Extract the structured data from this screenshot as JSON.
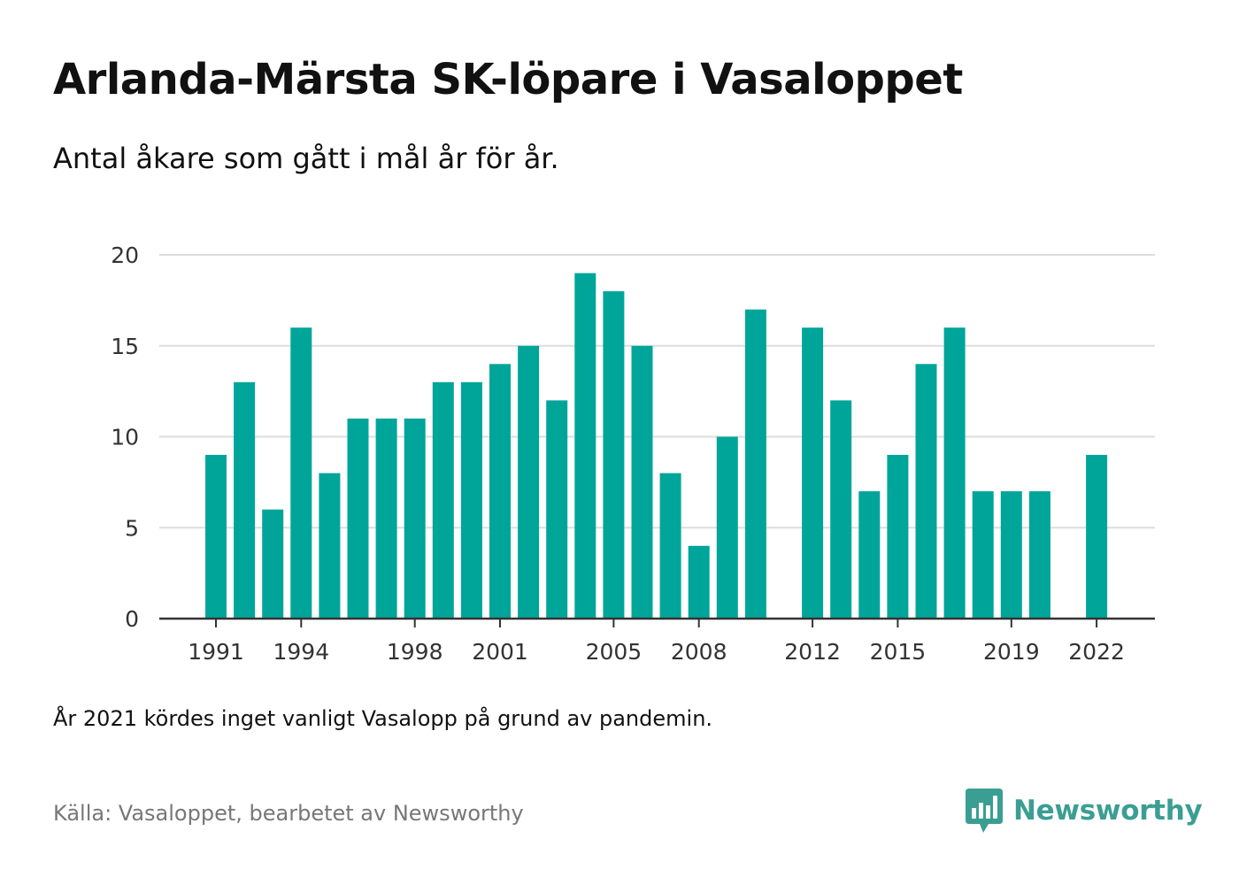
{
  "header": {
    "title": "Arlanda-Märsta SK-löpare i Vasaloppet",
    "subtitle": "Antal åkare som gått i mål år för år."
  },
  "footer": {
    "note": "År 2021 kördes inget vanligt Vasalopp på grund av pandemin.",
    "source": "Källa: Vasaloppet, bearbetet av Newsworthy",
    "brand": "Newsworthy"
  },
  "colors": {
    "bar": "#00a59a",
    "grid": "#dddddd",
    "axis": "#333333",
    "brand": "#3a9e93"
  },
  "chart_data": {
    "type": "bar",
    "title": "Arlanda-Märsta SK-löpare i Vasaloppet",
    "subtitle": "Antal åkare som gått i mål år för år.",
    "xlabel": "",
    "ylabel": "",
    "ylim": [
      0,
      20
    ],
    "yticks": [
      0,
      5,
      10,
      15,
      20
    ],
    "grid": true,
    "xrange": [
      1991,
      2022
    ],
    "xticks": [
      1991,
      1994,
      1998,
      2001,
      2005,
      2008,
      2012,
      2015,
      2019,
      2022
    ],
    "categories": [
      1991,
      1992,
      1993,
      1994,
      1995,
      1996,
      1997,
      1998,
      1999,
      2000,
      2001,
      2002,
      2003,
      2004,
      2005,
      2006,
      2007,
      2008,
      2009,
      2010,
      2011,
      2012,
      2013,
      2014,
      2015,
      2016,
      2017,
      2018,
      2019,
      2020,
      2021,
      2022
    ],
    "values": [
      9,
      13,
      6,
      16,
      8,
      11,
      11,
      11,
      13,
      13,
      14,
      15,
      12,
      19,
      18,
      15,
      8,
      4,
      10,
      17,
      0,
      16,
      12,
      7,
      9,
      14,
      16,
      7,
      7,
      7,
      0,
      9
    ]
  }
}
